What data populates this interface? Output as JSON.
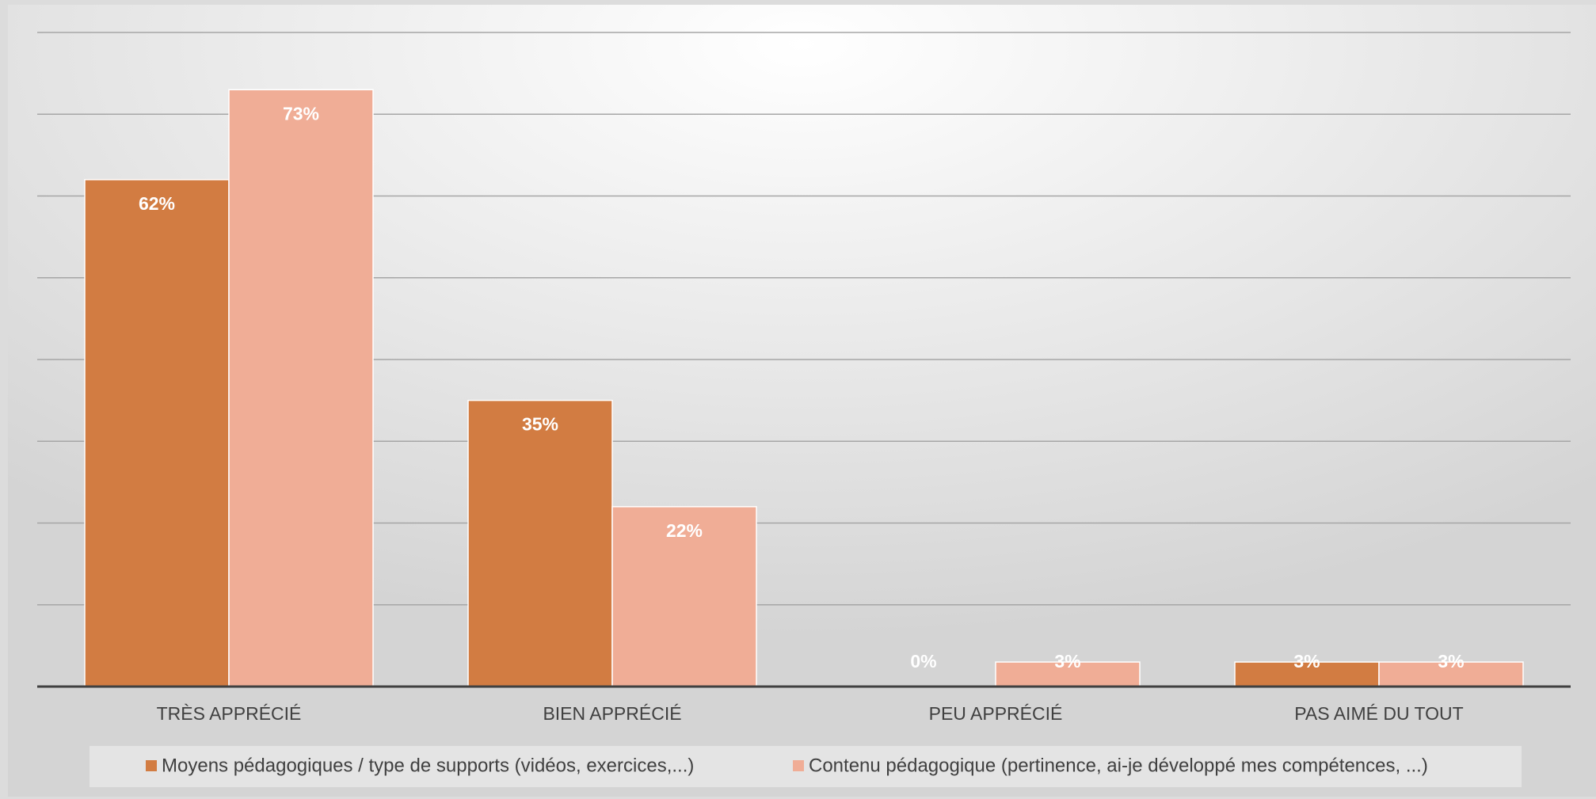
{
  "chart_data": {
    "type": "bar",
    "categories": [
      "TRÈS APPRÉCIÉ",
      "BIEN APPRÉCIÉ",
      "PEU APPRÉCIÉ",
      "PAS AIMÉ DU TOUT"
    ],
    "series": [
      {
        "name": "Moyens pédagogiques / type de supports (vidéos, exercices,...)",
        "color": "#d27c42",
        "values": [
          62,
          35,
          0,
          3
        ],
        "value_labels": [
          "62%",
          "35%",
          "0%",
          "3%"
        ]
      },
      {
        "name": "Contenu pédagogique (pertinence, ai-je développé mes compétences, ...)",
        "color": "#f0ad96",
        "values": [
          73,
          22,
          3,
          3
        ],
        "value_labels": [
          "73%",
          "22%",
          "3%",
          "3%"
        ]
      }
    ],
    "ylim": [
      0,
      80
    ],
    "yticks": [
      0,
      10,
      20,
      30,
      40,
      50,
      60,
      70,
      80
    ],
    "grid": true,
    "legend": "bottom"
  }
}
